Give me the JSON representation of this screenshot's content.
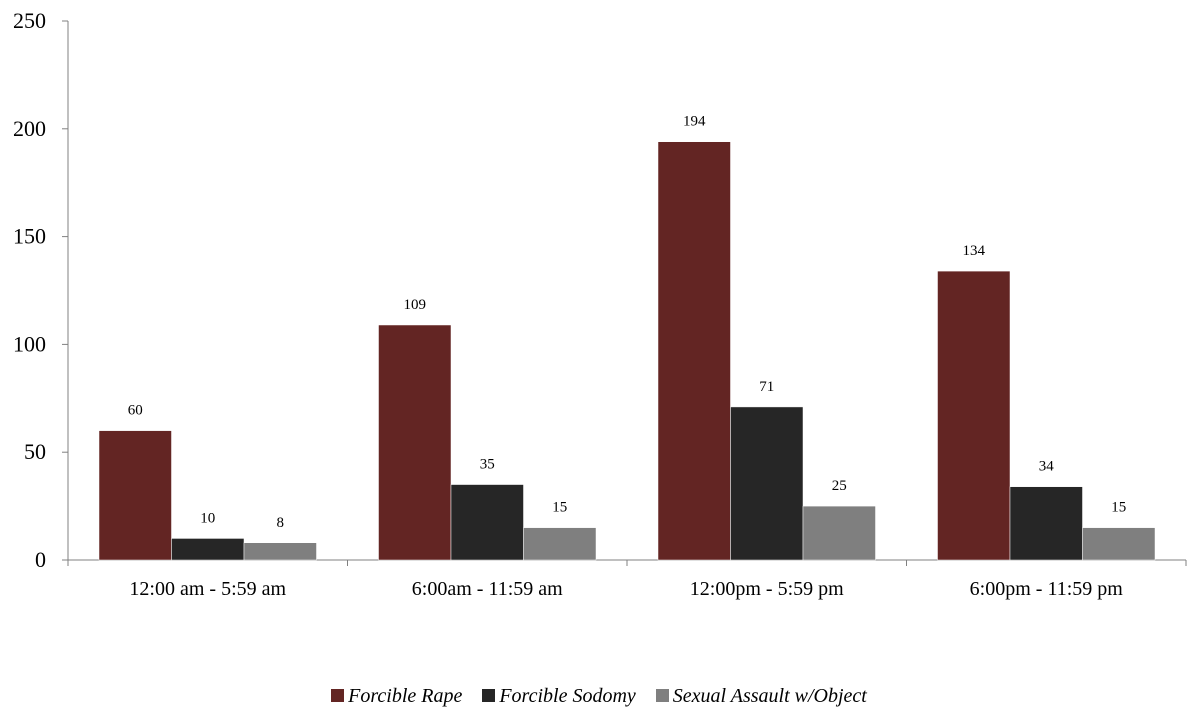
{
  "chart_data": {
    "type": "bar",
    "categories": [
      "12:00 am - 5:59 am",
      "6:00am - 11:59 am",
      "12:00pm - 5:59 pm",
      "6:00pm - 11:59 pm"
    ],
    "series": [
      {
        "name": "Forcible Rape",
        "values": [
          60,
          109,
          194,
          134
        ],
        "color": "#632523"
      },
      {
        "name": "Forcible Sodomy",
        "values": [
          10,
          35,
          71,
          34
        ],
        "color": "#262626"
      },
      {
        "name": "Sexual Assault w/Object",
        "values": [
          8,
          15,
          25,
          15
        ],
        "color": "#7f7f7f"
      }
    ],
    "yticks": [
      0,
      50,
      100,
      150,
      200,
      250
    ],
    "ylim": [
      0,
      250
    ],
    "grid": false,
    "legend_position": "bottom",
    "data_labels": true
  }
}
